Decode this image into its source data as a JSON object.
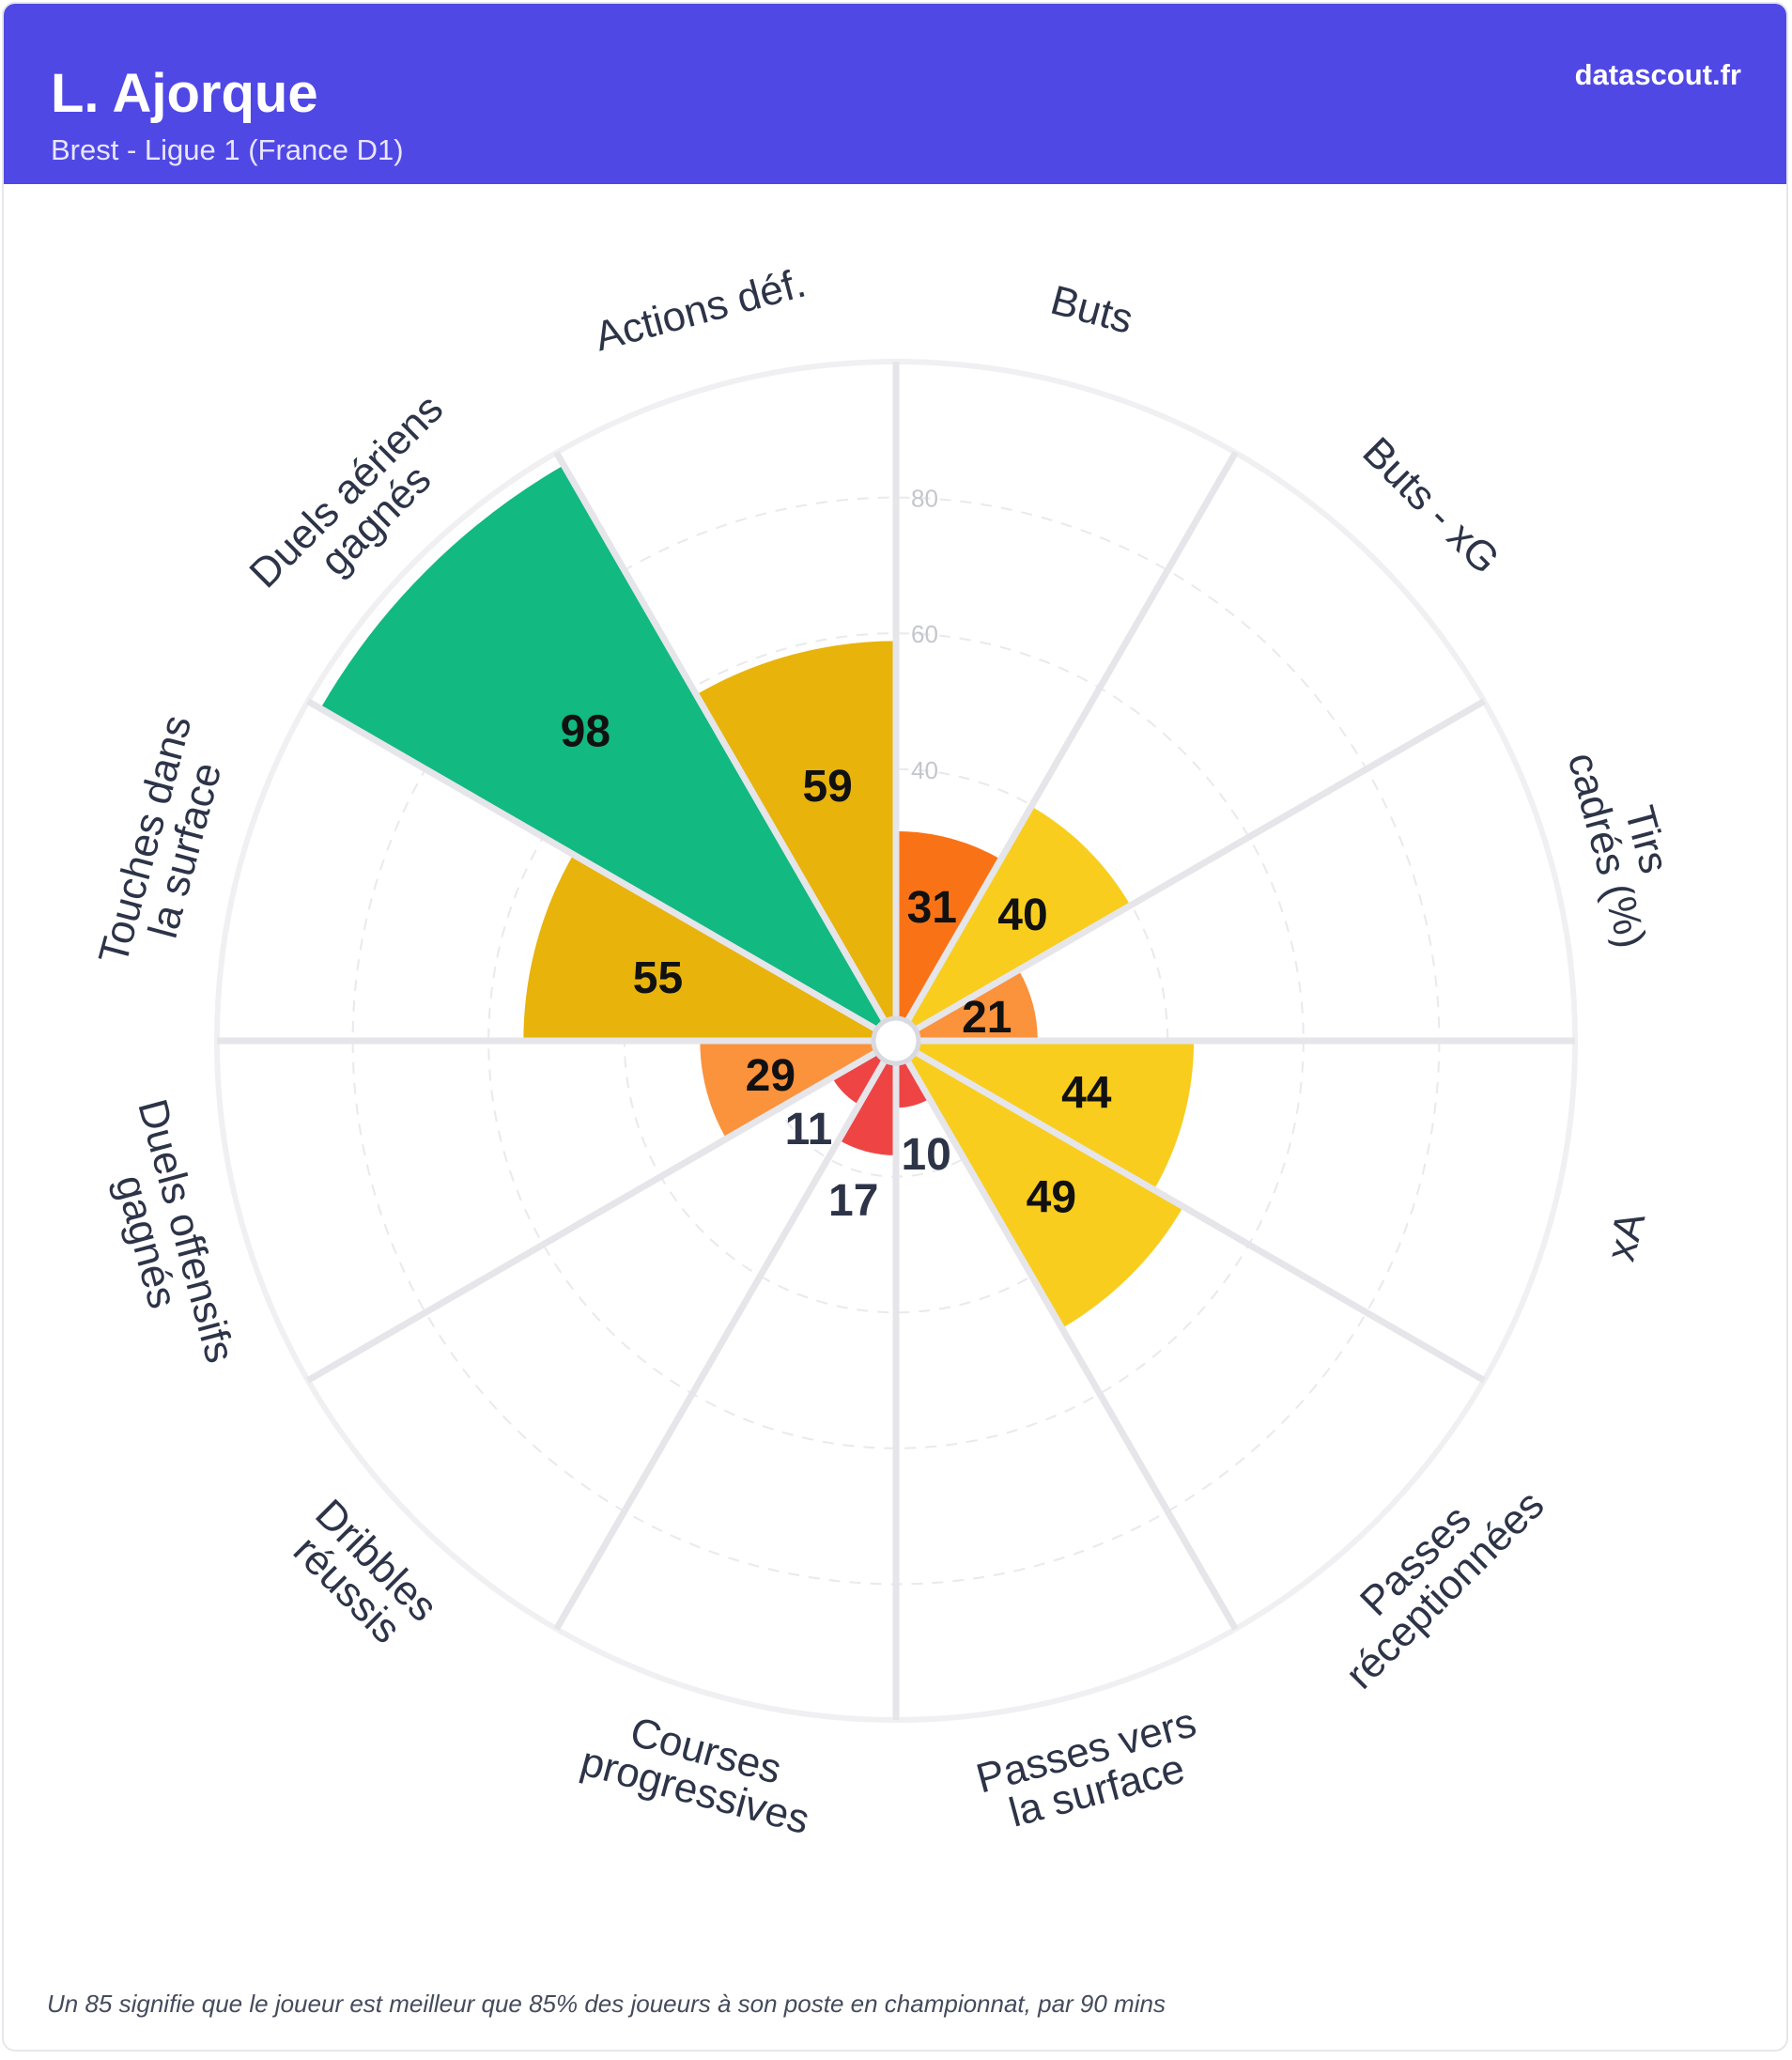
{
  "header": {
    "player": "L. Ajorque",
    "team_league": "Brest - Ligue 1 (France D1)",
    "brand": "datascout.fr"
  },
  "footnote": "Un 85 signifie que le joueur est meilleur que 85% des joueurs à son poste en championnat, par 90 mins",
  "colors": {
    "header_bg": "#5048e5",
    "elite": "#12b981",
    "good": "#e8b30b",
    "average": "#f9cd1e",
    "low": "#f97316",
    "lower": "#fb923c",
    "poor": "#ef4444",
    "grid": "#e5e5ea",
    "label": "#2d3448"
  },
  "chart_data": {
    "type": "polar-bar",
    "rmax": 100,
    "grid_ticks": [
      40,
      60,
      80
    ],
    "categories": [
      {
        "name": "Buts",
        "value": 31,
        "color": "#f97316"
      },
      {
        "name": "Buts - xG",
        "value": 40,
        "color": "#f9cd1e"
      },
      {
        "name": "Tirs cadrés (%)",
        "value": 21,
        "color": "#fb923c"
      },
      {
        "name": "xA",
        "value": 44,
        "color": "#f9cd1e"
      },
      {
        "name": "Passes réceptionnées",
        "value": 49,
        "color": "#f9cd1e"
      },
      {
        "name": "Passes vers la surface",
        "value": 10,
        "color": "#ef4444"
      },
      {
        "name": "Courses progressives",
        "value": 17,
        "color": "#ef4444"
      },
      {
        "name": "Dribbles réussis",
        "value": 11,
        "color": "#ef4444"
      },
      {
        "name": "Duels offensifs gagnés",
        "value": 29,
        "color": "#fb923c"
      },
      {
        "name": "Touches dans la surface",
        "value": 55,
        "color": "#e8b30b"
      },
      {
        "name": "Duels aériens gagnés",
        "value": 98,
        "color": "#12b981"
      },
      {
        "name": "Actions déf.",
        "value": 59,
        "color": "#e8b30b"
      }
    ]
  }
}
